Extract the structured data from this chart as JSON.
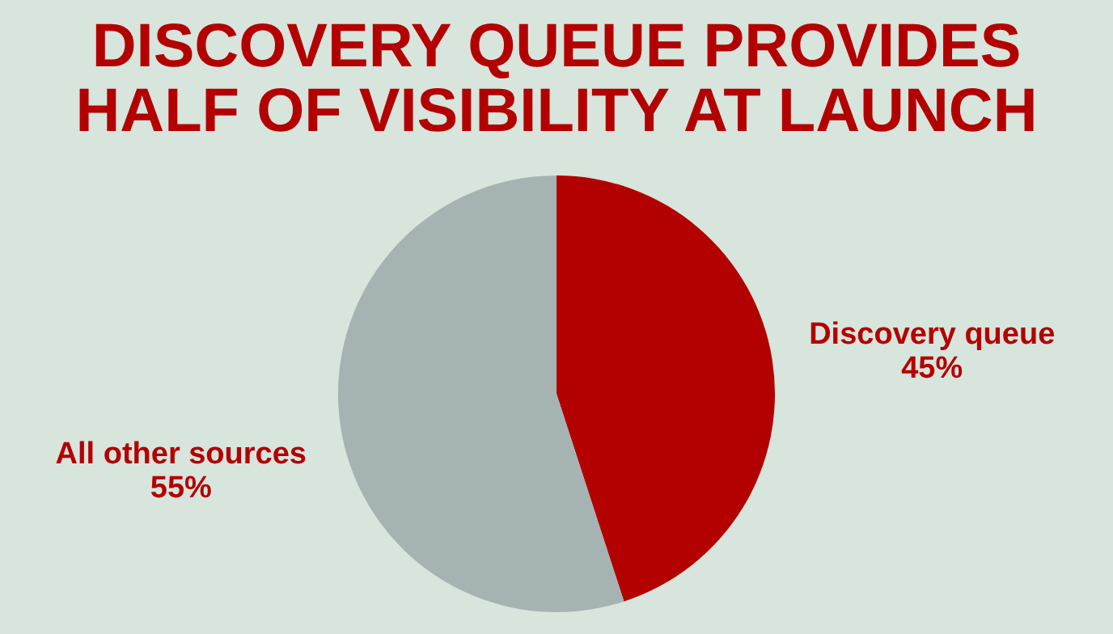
{
  "chart_data": {
    "type": "pie",
    "title": [
      "DISCOVERY QUEUE PROVIDES",
      "HALF OF VISIBILITY AT LAUNCH"
    ],
    "categories": [
      "Discovery queue",
      "All other sources"
    ],
    "values": [
      45,
      55
    ],
    "value_labels": [
      "45%",
      "55%"
    ],
    "colors": [
      "#b30000",
      "#a6b3b3"
    ],
    "legend": false
  }
}
